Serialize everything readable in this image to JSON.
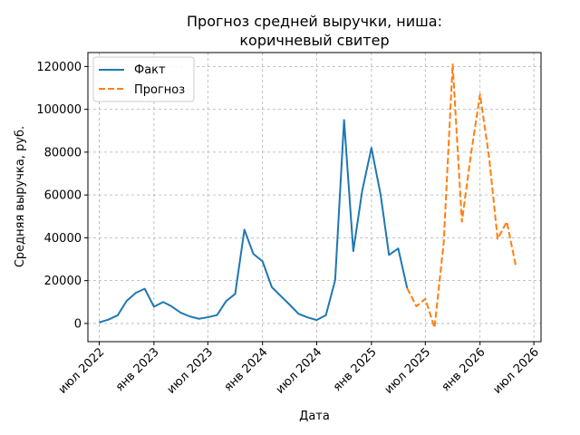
{
  "chart_data": {
    "type": "line",
    "title": "Прогноз средней выручки, ниша:\nкоричневый свитер",
    "title_lines": [
      "Прогноз средней выручки, ниша:",
      "коричневый свитер"
    ],
    "xlabel": "Дата",
    "ylabel": "Средняя выручка, руб.",
    "xlim": [
      "2022-05-24",
      "2026-07-25"
    ],
    "ylim": [
      -8500,
      126500
    ],
    "x_ticks": [
      {
        "date": "2022-07-01",
        "label": "июл 2022"
      },
      {
        "date": "2023-01-01",
        "label": "янв 2023"
      },
      {
        "date": "2023-07-01",
        "label": "июл 2023"
      },
      {
        "date": "2024-01-01",
        "label": "янв 2024"
      },
      {
        "date": "2024-07-01",
        "label": "июл 2024"
      },
      {
        "date": "2025-01-01",
        "label": "янв 2025"
      },
      {
        "date": "2025-07-01",
        "label": "июл 2025"
      },
      {
        "date": "2026-01-01",
        "label": "янв 2026"
      },
      {
        "date": "2026-07-01",
        "label": "июл 2026"
      }
    ],
    "y_ticks": [
      0,
      20000,
      40000,
      60000,
      80000,
      100000,
      120000
    ],
    "grid": true,
    "legend_position": "top-left",
    "series": [
      {
        "name": "Факт",
        "style": "solid",
        "color": "#1f77b4",
        "points": [
          {
            "x": "2022-07-01",
            "y": 500
          },
          {
            "x": "2022-08-01",
            "y": 1800
          },
          {
            "x": "2022-09-01",
            "y": 3800
          },
          {
            "x": "2022-10-01",
            "y": 10500
          },
          {
            "x": "2022-11-01",
            "y": 14300
          },
          {
            "x": "2022-12-01",
            "y": 16200
          },
          {
            "x": "2023-01-01",
            "y": 7800
          },
          {
            "x": "2023-02-01",
            "y": 10000
          },
          {
            "x": "2023-03-01",
            "y": 8000
          },
          {
            "x": "2023-04-01",
            "y": 5000
          },
          {
            "x": "2023-05-01",
            "y": 3300
          },
          {
            "x": "2023-06-01",
            "y": 2200
          },
          {
            "x": "2023-07-01",
            "y": 2900
          },
          {
            "x": "2023-08-01",
            "y": 3900
          },
          {
            "x": "2023-09-01",
            "y": 10500
          },
          {
            "x": "2023-10-01",
            "y": 13800
          },
          {
            "x": "2023-11-01",
            "y": 43800
          },
          {
            "x": "2023-12-01",
            "y": 32500
          },
          {
            "x": "2024-01-01",
            "y": 29000
          },
          {
            "x": "2024-02-01",
            "y": 17000
          },
          {
            "x": "2024-03-01",
            "y": 13000
          },
          {
            "x": "2024-04-01",
            "y": 8800
          },
          {
            "x": "2024-05-01",
            "y": 4500
          },
          {
            "x": "2024-06-01",
            "y": 2800
          },
          {
            "x": "2024-07-01",
            "y": 1600
          },
          {
            "x": "2024-08-01",
            "y": 3900
          },
          {
            "x": "2024-09-01",
            "y": 20200
          },
          {
            "x": "2024-10-01",
            "y": 95000
          },
          {
            "x": "2024-11-01",
            "y": 33800
          },
          {
            "x": "2024-12-01",
            "y": 62000
          },
          {
            "x": "2025-01-01",
            "y": 82000
          },
          {
            "x": "2025-02-01",
            "y": 60000
          },
          {
            "x": "2025-03-01",
            "y": 32000
          },
          {
            "x": "2025-04-01",
            "y": 35000
          },
          {
            "x": "2025-05-01",
            "y": 16500
          }
        ]
      },
      {
        "name": "Прогноз",
        "style": "dashed",
        "color": "#ff7f0e",
        "points": [
          {
            "x": "2025-05-01",
            "y": 16500
          },
          {
            "x": "2025-06-01",
            "y": 8000
          },
          {
            "x": "2025-07-01",
            "y": 11500
          },
          {
            "x": "2025-08-01",
            "y": -2000
          },
          {
            "x": "2025-09-01",
            "y": 38000
          },
          {
            "x": "2025-10-01",
            "y": 121000
          },
          {
            "x": "2025-11-01",
            "y": 47500
          },
          {
            "x": "2025-12-01",
            "y": 78500
          },
          {
            "x": "2026-01-01",
            "y": 107000
          },
          {
            "x": "2026-02-01",
            "y": 77000
          },
          {
            "x": "2026-03-01",
            "y": 39500
          },
          {
            "x": "2026-04-01",
            "y": 47500
          },
          {
            "x": "2026-05-01",
            "y": 27000
          }
        ]
      }
    ]
  }
}
